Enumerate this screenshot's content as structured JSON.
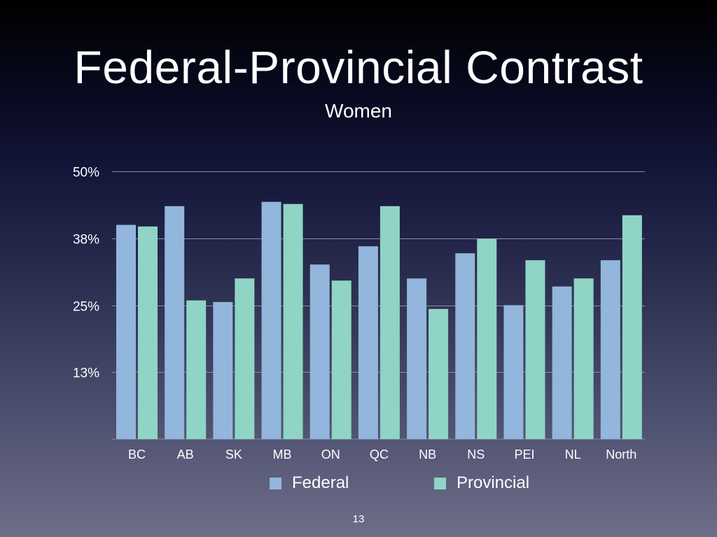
{
  "slide": {
    "title": "Federal-Provincial Contrast",
    "subtitle": "Women",
    "page_number": "13"
  },
  "colors": {
    "federal": "#92b6dc",
    "provincial": "#8fd4c4",
    "gridline": "#8a8da0"
  },
  "chart_data": {
    "type": "bar",
    "categories": [
      "BC",
      "AB",
      "SK",
      "MB",
      "ON",
      "QC",
      "NB",
      "NS",
      "PEI",
      "NL",
      "North"
    ],
    "series": [
      {
        "name": "Federal",
        "values": [
          40.0,
          43.5,
          25.6,
          44.3,
          32.6,
          36.0,
          30.0,
          34.7,
          25.0,
          28.5,
          33.4
        ]
      },
      {
        "name": "Provincial",
        "values": [
          39.7,
          25.9,
          30.0,
          43.9,
          29.6,
          43.5,
          24.3,
          37.4,
          33.4,
          30.0,
          41.8
        ]
      }
    ],
    "y_ticks": [
      "13%",
      "25%",
      "38%",
      "50%"
    ],
    "y_tick_values": [
      12.5,
      25,
      37.5,
      50
    ],
    "ylim": [
      0,
      50
    ],
    "title": "Women",
    "xlabel": "",
    "ylabel": "",
    "legend": {
      "position": "bottom",
      "items": [
        "Federal",
        "Provincial"
      ]
    }
  }
}
